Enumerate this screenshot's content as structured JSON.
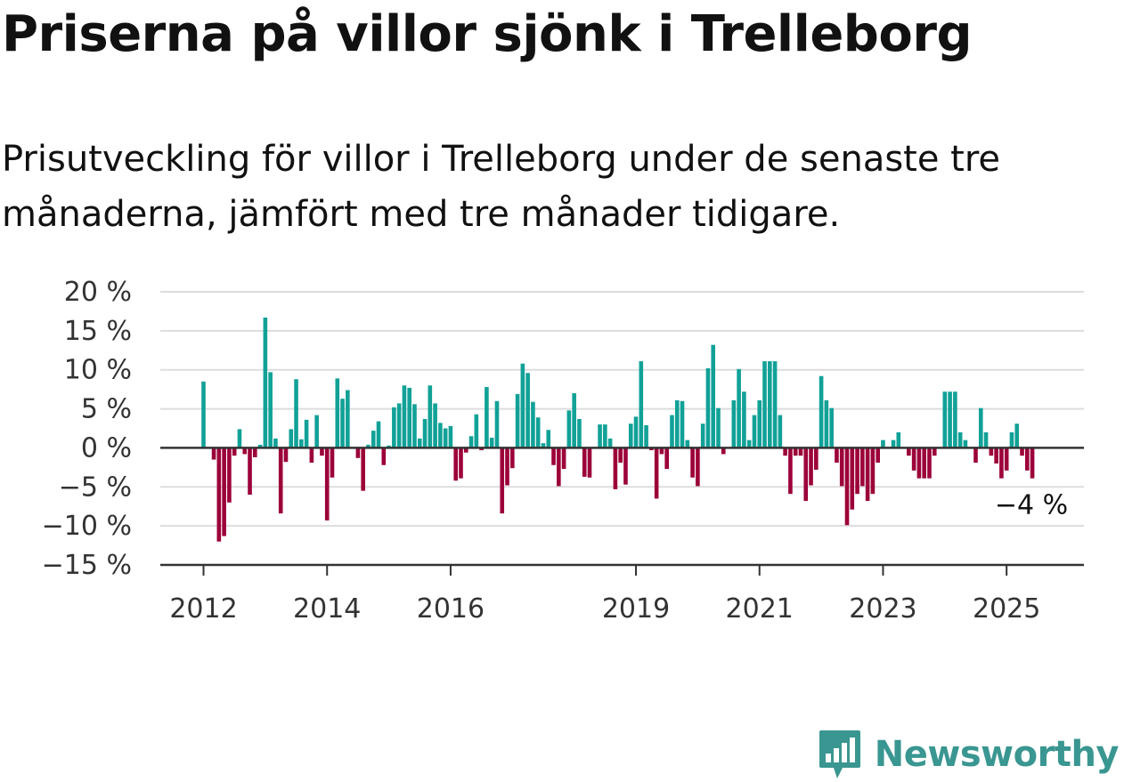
{
  "title": "Priserna på villor sjönk i Trelleborg",
  "subtitle": "Prisutveckling för villor i Trelleborg under de senaste tre månaderna, jämfört med tre månader tidigare.",
  "brand": {
    "name": "Newsworthy"
  },
  "chart_data": {
    "type": "bar",
    "ylim": [
      -15,
      20
    ],
    "yticks": [
      20,
      15,
      10,
      5,
      0,
      -5,
      -10,
      -15
    ],
    "ytick_labels": [
      "20 %",
      "15 %",
      "10 %",
      "5 %",
      "0 %",
      "−5 %",
      "−10 %",
      "−15 %"
    ],
    "xticks": [
      2012,
      2014,
      2016,
      2019,
      2021,
      2023,
      2025
    ],
    "xtick_labels": [
      "2012",
      "2014",
      "2016",
      "2019",
      "2021",
      "2023",
      "2025"
    ],
    "x_start": "2012-01",
    "grid": true,
    "colors": {
      "positive": "#11a197",
      "negative": "#9c0039",
      "grid": "#dddddd",
      "axis": "#333333"
    },
    "last_value_label": "−4 %",
    "values": [
      8.5,
      0,
      -1.5,
      -12,
      -11.3,
      -7,
      -1,
      2.4,
      -0.8,
      -6,
      -1.2,
      0.4,
      16.7,
      9.7,
      1.2,
      -8.4,
      -1.8,
      2.4,
      8.8,
      1.1,
      3.6,
      -1.9,
      4.2,
      -1.0,
      -9.3,
      -3.8,
      8.9,
      6.3,
      7.4,
      0,
      -1.3,
      -5.5,
      0.4,
      2.2,
      3.4,
      -2.2,
      0.3,
      5.2,
      5.7,
      8.0,
      7.7,
      5.6,
      1.2,
      3.7,
      8.0,
      5.7,
      3.2,
      2.5,
      2.8,
      -4.2,
      -3.9,
      -0.6,
      1.5,
      4.3,
      -0.3,
      7.8,
      1.3,
      6.0,
      -8.4,
      -4.8,
      -2.6,
      6.9,
      10.8,
      9.6,
      5.9,
      3.9,
      0.6,
      2.3,
      -2.2,
      -4.9,
      -2.7,
      4.8,
      7.0,
      3.7,
      -3.7,
      -3.8,
      0,
      3.0,
      3.0,
      1.2,
      -5.3,
      -1.9,
      -4.7,
      3.1,
      4.0,
      11.1,
      2.9,
      -0.3,
      -6.5,
      -0.8,
      -2.7,
      4.2,
      6.1,
      6.0,
      1.0,
      -3.8,
      -4.9,
      3.1,
      10.2,
      13.2,
      5.1,
      -0.8,
      0,
      6.1,
      10.1,
      7.2,
      1.0,
      4.2,
      6.1,
      11.1,
      11.1,
      11.1,
      4.2,
      -1.0,
      -5.9,
      -1.0,
      -1.0,
      -6.8,
      -4.8,
      -2.8,
      9.2,
      6.1,
      5.1,
      -1.9,
      -4.9,
      -9.9,
      -7.9,
      -5.9,
      -4.9,
      -6.8,
      -5.9,
      -1.9,
      1.0,
      0,
      1.0,
      2.0,
      0,
      -1.0,
      -2.9,
      -3.9,
      -3.9,
      -3.9,
      -1.0,
      0,
      7.2,
      7.2,
      7.2,
      2.0,
      1.0,
      0,
      -1.9,
      5.1,
      2.0,
      -1.0,
      -2.0,
      -3.9,
      -2.9,
      2.0,
      3.1,
      -1.0,
      -2.9,
      -3.9
    ]
  }
}
